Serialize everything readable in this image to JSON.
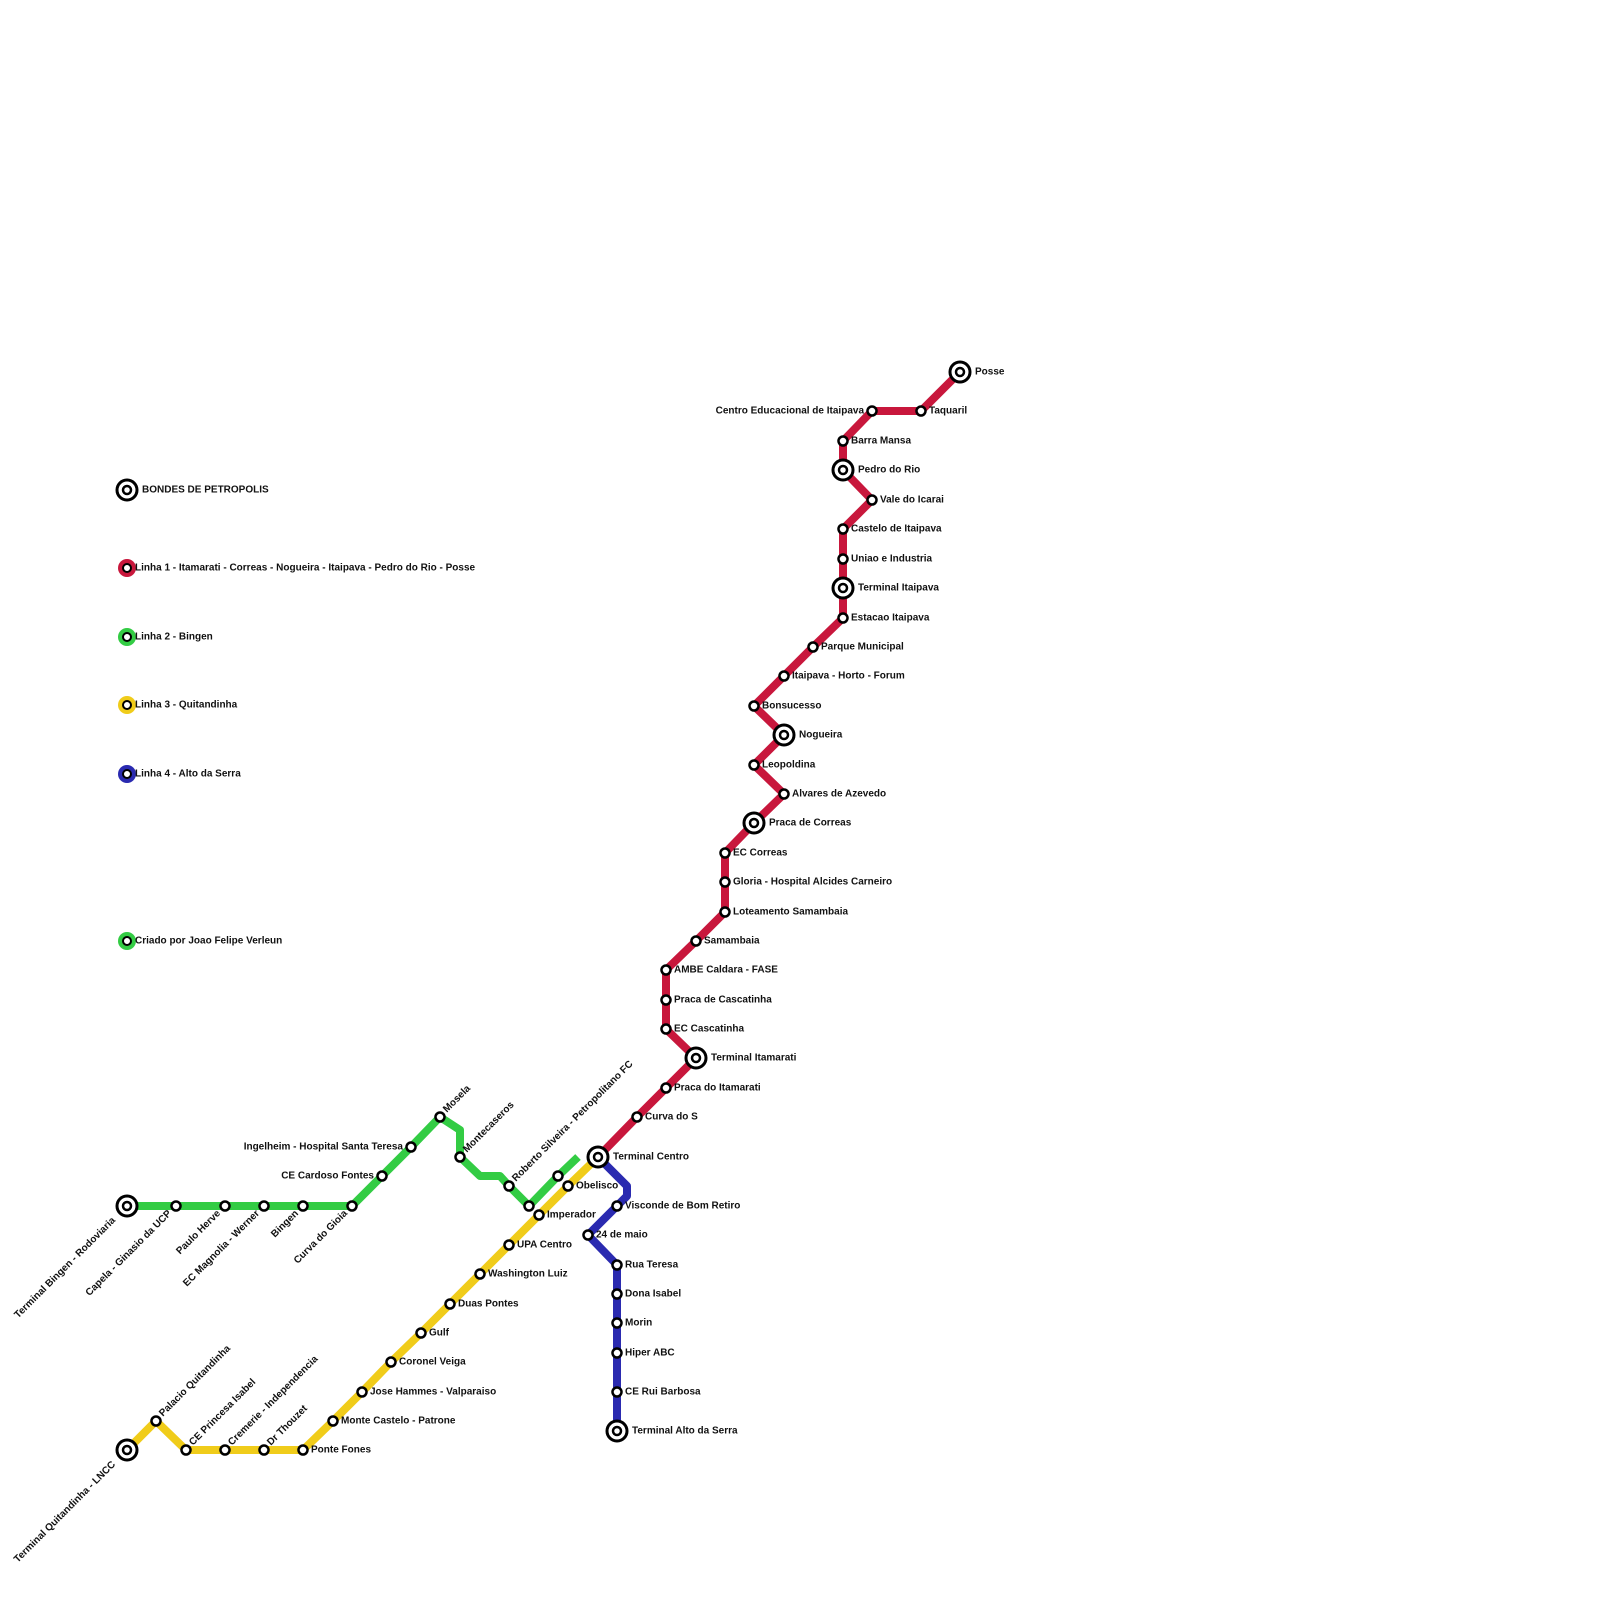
{
  "legend": [
    {
      "label": "BONDES DE PETROPOLIS",
      "color": "#000000"
    },
    {
      "label": "Linha 1 - Itamarati - Correas - Nogueira - Itaipava - Pedro do Rio - Posse",
      "color": "#c8173c"
    },
    {
      "label": "Linha 2 - Bingen",
      "color": "#33cc44"
    },
    {
      "label": "Linha 3 - Quitandinha",
      "color": "#f0cc1a"
    },
    {
      "label": "Linha 4 - Alto da Serra",
      "color": "#2a2ab0"
    },
    {
      "label": "Criado por Joao Felipe Verleun",
      "color": "#33cc44"
    }
  ],
  "lines": [
    {
      "color": "#c8173c",
      "stations": [
        "Terminal Centro",
        "Curva do S",
        "Praca do Itamarati",
        "Terminal Itamarati",
        "EC Cascatinha",
        "Praca de Cascatinha",
        "AMBE Caldara - FASE",
        "Samambaia",
        "Loteamento Samambaia",
        "Gloria - Hospital Alcides Carneiro",
        "EC Correas",
        "Praca de Correas",
        "Alvares de Azevedo",
        "Leopoldina",
        "Nogueira",
        "Bonsucesso",
        "Itaipava - Horto - Forum",
        "Parque Municipal",
        "Estacao Itaipava",
        "Terminal Itaipava",
        "Uniao e Industria",
        "Castelo de Itaipava",
        "Vale do Icarai",
        "Pedro do Rio",
        "Barra Mansa",
        "Centro Educacional de Itaipava",
        "Taquaril",
        "Posse"
      ]
    },
    {
      "color": "#33cc44",
      "stations": [
        "Terminal Bingen - Rodoviaria",
        "Capela - Ginasio da UCP",
        "Paulo Herve",
        "EC Magnolia - Werner",
        "Bingen",
        "Curva do Gioia",
        "CE Cardoso Fontes",
        "Ingelheim - Hospital Santa Teresa",
        "Mosela",
        "Montecaseros",
        "Roberto Silveira - Petropolitano FC"
      ]
    },
    {
      "color": "#f0cc1a",
      "stations": [
        "Terminal Quitandinha - LNCC",
        "Palacio Quitandinha",
        "CE Princesa Isabel",
        "Cremerie - Independencia",
        "Dr Thouzet",
        "Ponte Fones",
        "Monte Castelo - Patrone",
        "Jose Hammes - Valparaiso",
        "Coronel Veiga",
        "Gulf",
        "Duas Pontes",
        "Washington Luiz",
        "UPA Centro",
        "Imperador",
        "Obelisco"
      ]
    },
    {
      "color": "#2a2ab0",
      "stations": [
        "Visconde de Bom Retiro",
        "24 de maio",
        "Rua Teresa",
        "Dona Isabel",
        "Morin",
        "Hiper ABC",
        "CE Rui Barbosa",
        "Terminal Alto da Serra"
      ]
    }
  ]
}
